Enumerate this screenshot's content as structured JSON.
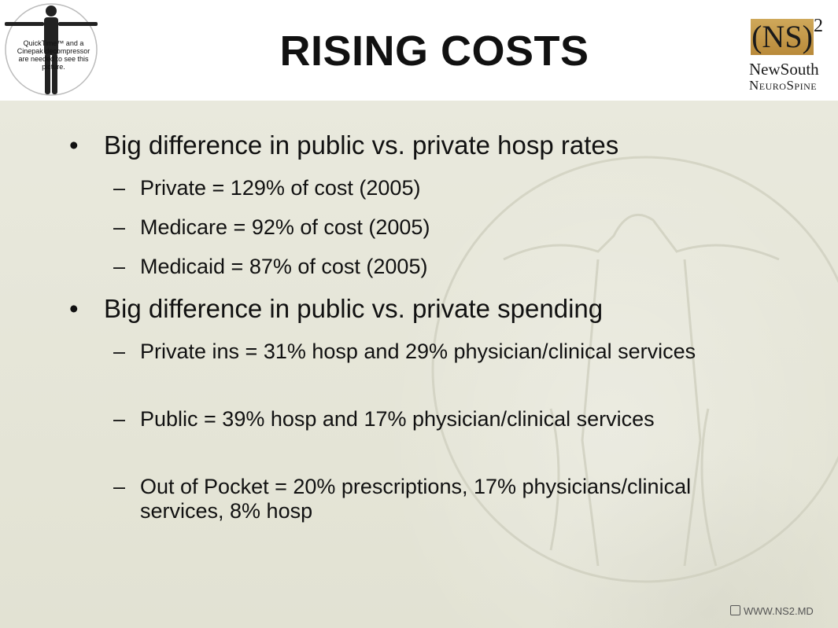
{
  "header": {
    "title": "RISING COSTS",
    "figure_caption": "QuickTime™ and a\nCinepak decompressor\nare needed to see this picture.",
    "logo": {
      "mark": "(NS)",
      "superscript": "2",
      "line1": "NewSouth",
      "line2": "NeuroSpine"
    }
  },
  "content": {
    "bullets": [
      {
        "text": "Big difference in public vs. private hosp rates",
        "subs": [
          "Private = 129% of cost (2005)",
          "Medicare = 92% of cost (2005)",
          "Medicaid = 87% of cost (2005)"
        ]
      },
      {
        "text": "Big difference in public vs. private spending",
        "subs": [
          "Private ins = 31% hosp and 29% physician/clinical services",
          "Public = 39% hosp and 17% physician/clinical services",
          "Out of Pocket = 20% prescriptions, 17% physicians/clinical services, 8% hosp"
        ]
      }
    ]
  },
  "footer": {
    "url": "WWW.NS2.MD",
    "icon": "link-icon"
  }
}
